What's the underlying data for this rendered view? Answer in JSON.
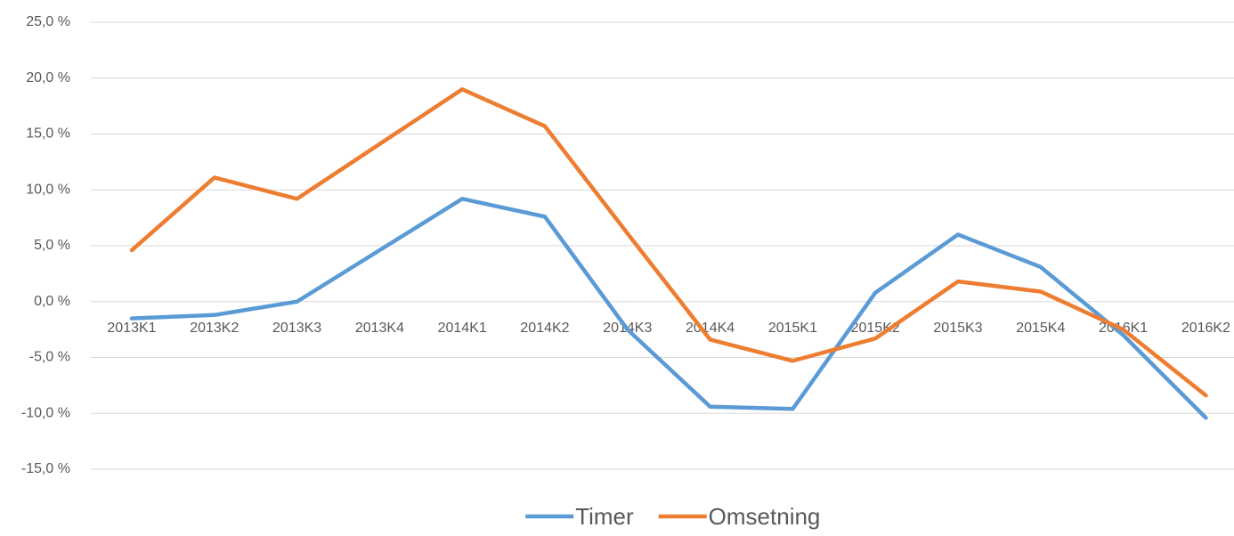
{
  "chart_data": {
    "type": "line",
    "categories": [
      "2013K1",
      "2013K2",
      "2013K3",
      "2013K4",
      "2014K1",
      "2014K2",
      "2014K3",
      "2014K4",
      "2015K1",
      "2015K2",
      "2015K3",
      "2015K4",
      "2016K1",
      "2016K2"
    ],
    "series": [
      {
        "name": "Timer",
        "color": "#5b9bd5",
        "values": [
          -1.5,
          -1.2,
          0.0,
          4.6,
          9.2,
          7.6,
          -2.5,
          -9.4,
          -9.6,
          0.8,
          6.0,
          3.1,
          -3.0,
          -10.4
        ]
      },
      {
        "name": "Omsetning",
        "color": "#ed7d31",
        "values": [
          4.6,
          11.1,
          9.2,
          14.1,
          19.0,
          15.7,
          6.1,
          -3.4,
          -5.3,
          -3.3,
          1.8,
          0.9,
          -2.5,
          -8.4
        ]
      }
    ],
    "ylim": [
      -15,
      25
    ],
    "yticks": [
      {
        "value": -15,
        "label": "-15,0 %"
      },
      {
        "value": -10,
        "label": "-10,0 %"
      },
      {
        "value": -5,
        "label": "-5,0 %"
      },
      {
        "value": 0,
        "label": "0,0 %"
      },
      {
        "value": 5,
        "label": "5,0 %"
      },
      {
        "value": 10,
        "label": "10,0 %"
      },
      {
        "value": 15,
        "label": "15,0 %"
      },
      {
        "value": 20,
        "label": "20,0 %"
      },
      {
        "value": 25,
        "label": "25,0 %"
      }
    ],
    "grid": true,
    "legend": "bottom"
  }
}
